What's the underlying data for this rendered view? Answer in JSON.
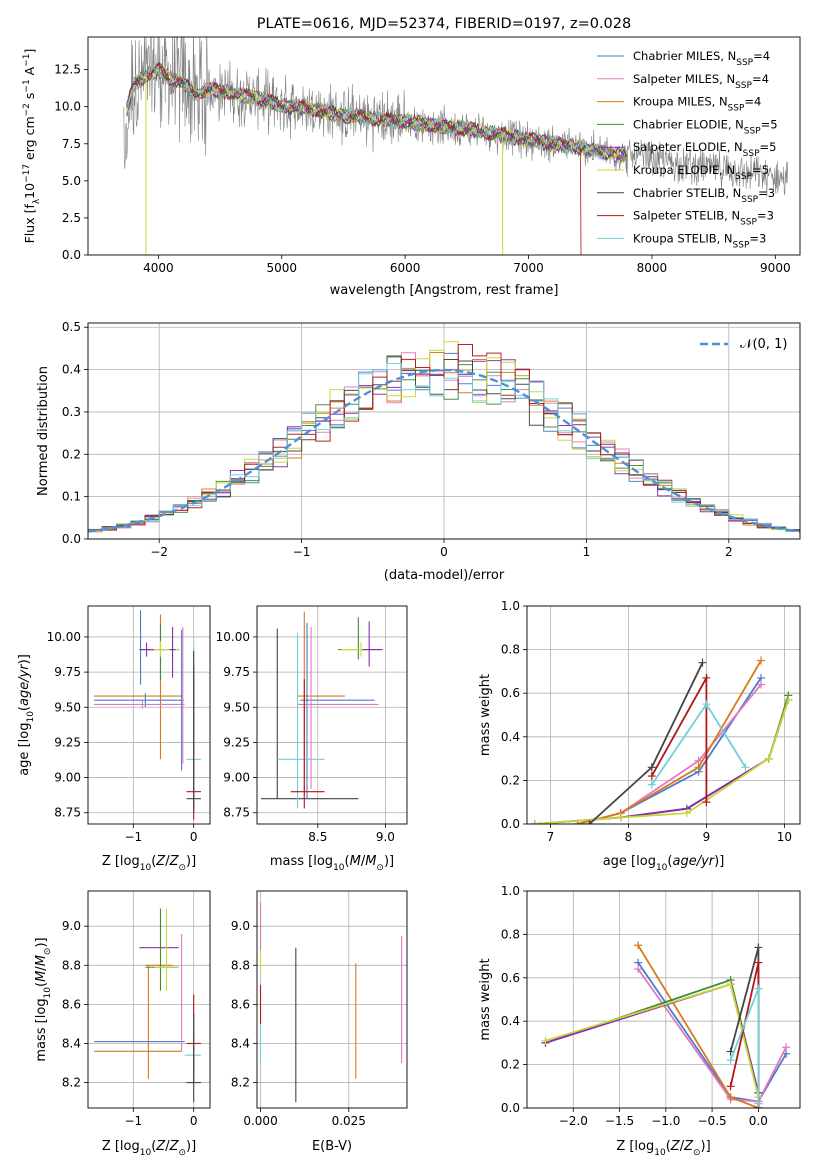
{
  "chart_data": [
    {
      "id": "spectrum",
      "type": "line",
      "title": "PLATE=0616, MJD=52374, FIBERID=0197, z=0.028",
      "xlabel": "wavelength [Angstrom, rest frame]",
      "ylabel": "Flux [f_λ 10^-17 erg cm^-2 s^-1 A^-1]",
      "xlim": [
        3430,
        9200
      ],
      "ylim": [
        0,
        14.7
      ],
      "xticks": [
        4000,
        5000,
        6000,
        7000,
        8000,
        9000
      ],
      "yticks": [
        0.0,
        2.5,
        5.0,
        7.5,
        10.0,
        12.5
      ],
      "grid": false,
      "legend_position": "top-right",
      "series": [
        {
          "name": "Chabrier MILES, N_SSP=4",
          "color": "#4a7bd0"
        },
        {
          "name": "Salpeter MILES, N_SSP=4",
          "color": "#e07ac0"
        },
        {
          "name": "Kroupa MILES, N_SSP=4",
          "color": "#d77a1b"
        },
        {
          "name": "Chabrier ELODIE, N_SSP=5",
          "color": "#3e8c3a"
        },
        {
          "name": "Salpeter ELODIE, N_SSP=5",
          "color": "#8a2bb0"
        },
        {
          "name": "Kroupa ELODIE, N_SSP=5",
          "color": "#c8d838"
        },
        {
          "name": "Chabrier STELIB, N_SSP=3",
          "color": "#444444"
        },
        {
          "name": "Salpeter STELIB, N_SSP=3",
          "color": "#b01818"
        },
        {
          "name": "Kroupa STELIB, N_SSP=3",
          "color": "#6fd0d8"
        }
      ],
      "model_continuum": {
        "x": [
          3700,
          3800,
          3900,
          4000,
          4100,
          4200,
          4300,
          4400,
          4600,
          4800,
          5000,
          5200,
          5500,
          6000,
          6500,
          7000,
          7500,
          7700
        ],
        "y": [
          8.5,
          11.5,
          12.1,
          12.5,
          11.9,
          11.6,
          10.8,
          11.2,
          10.9,
          10.6,
          10.1,
          9.9,
          9.4,
          9.0,
          8.5,
          7.8,
          7.1,
          6.8
        ]
      }
    },
    {
      "id": "residuals",
      "type": "line",
      "xlabel": "(data-model)/error",
      "ylabel": "Normed distribution",
      "xlim": [
        -2.5,
        2.5
      ],
      "ylim": [
        0,
        0.51
      ],
      "xticks": [
        -2,
        -1,
        0,
        1,
        2
      ],
      "yticks": [
        0.0,
        0.1,
        0.2,
        0.3,
        0.4,
        0.5
      ],
      "grid": true,
      "legend_position": "top-right",
      "legend_label": "N(0,1)",
      "reference_curve": {
        "name": "N(0,1)",
        "mean": 0,
        "sigma": 1,
        "color": "#5090d8"
      }
    },
    {
      "id": "age-vs-Z",
      "type": "scatter",
      "xlabel": "Z [log10(Z/Z⊙)]",
      "ylabel": "age  [log10(age/yr)]",
      "xlim": [
        -1.75,
        0.27
      ],
      "ylim": [
        8.67,
        10.22
      ],
      "xticks": [
        -1,
        0
      ],
      "yticks": [
        8.75,
        9.0,
        9.25,
        9.5,
        9.75,
        10.0
      ],
      "grid": true,
      "points": [
        {
          "x": -0.88,
          "y": 9.91,
          "xerr": [
            0.0,
            0.42
          ],
          "yerr": [
            0.25,
            0.28
          ],
          "color": "#4a7bd0"
        },
        {
          "x": -0.55,
          "y": 9.58,
          "xerr": [
            1.1,
            0.35
          ],
          "yerr": [
            0.45,
            0.58
          ],
          "color": "#d77a1b"
        },
        {
          "x": -0.8,
          "y": 9.55,
          "xerr": [
            0.85,
            0.6
          ],
          "yerr": [
            0.05,
            0.05
          ],
          "color": "#4a7bd0"
        },
        {
          "x": -0.85,
          "y": 9.52,
          "xerr": [
            0.8,
            0.7
          ],
          "yerr": [
            0.03,
            0.03
          ],
          "color": "#e07ac0"
        },
        {
          "x": -0.55,
          "y": 9.91,
          "xerr": [
            0.3,
            0.3
          ],
          "yerr": [
            0.22,
            0.18
          ],
          "color": "#3e8c3a"
        },
        {
          "x": -0.55,
          "y": 9.91,
          "xerr": [
            0.25,
            0.32
          ],
          "yerr": [
            0.05,
            0.06
          ],
          "color": "#c8d838"
        },
        {
          "x": -0.78,
          "y": 9.91,
          "xerr": [
            0.12,
            0.12
          ],
          "yerr": [
            0.05,
            0.05
          ],
          "color": "#8a2bb0"
        },
        {
          "x": -0.35,
          "y": 9.91,
          "xerr": [
            0.05,
            0.05
          ],
          "yerr": [
            0.2,
            0.16
          ],
          "color": "#8a2bb0"
        },
        {
          "x": -0.2,
          "y": 9.55,
          "xerr": [
            0.02,
            0.02
          ],
          "yerr": [
            0.5,
            0.5
          ],
          "color": "#4a7bd0"
        },
        {
          "x": -0.18,
          "y": 9.55,
          "xerr": [
            0.02,
            0.02
          ],
          "yerr": [
            0.45,
            0.52
          ],
          "color": "#e07ac0"
        },
        {
          "x": 0.0,
          "y": 9.13,
          "xerr": [
            0.12,
            0.12
          ],
          "yerr": [
            0.35,
            0.8
          ],
          "color": "#6fd0d8"
        },
        {
          "x": 0.0,
          "y": 8.9,
          "xerr": [
            0.12,
            0.12
          ],
          "yerr": [
            0.2,
            0.9
          ],
          "color": "#b01818"
        },
        {
          "x": 0.0,
          "y": 8.85,
          "xerr": [
            0.12,
            0.12
          ],
          "yerr": [
            0.1,
            1.05
          ],
          "color": "#444444"
        }
      ]
    },
    {
      "id": "age-vs-mass",
      "type": "scatter",
      "xlabel": "mass [log10(M/M⊙)]",
      "ylabel": "",
      "xlim": [
        8.05,
        9.16
      ],
      "ylim": [
        8.67,
        10.22
      ],
      "xticks": [
        8.5,
        9.0
      ],
      "yticks": [
        8.75,
        9.0,
        9.25,
        9.5,
        9.75,
        10.0
      ],
      "grid": true,
      "points": [
        {
          "x": 8.2,
          "y": 8.85,
          "xerr": [
            0.12,
            0.6
          ],
          "yerr": [
            0.0,
            1.21
          ],
          "color": "#444444"
        },
        {
          "x": 8.4,
          "y": 9.58,
          "xerr": [
            0.05,
            0.3
          ],
          "yerr": [
            0.7,
            0.6
          ],
          "color": "#d77a1b"
        },
        {
          "x": 8.42,
          "y": 9.55,
          "xerr": [
            0.05,
            0.5
          ],
          "yerr": [
            0.7,
            0.55
          ],
          "color": "#4a7bd0"
        },
        {
          "x": 8.45,
          "y": 9.52,
          "xerr": [
            0.1,
            0.5
          ],
          "yerr": [
            0.6,
            0.55
          ],
          "color": "#e07ac0"
        },
        {
          "x": 8.35,
          "y": 9.13,
          "xerr": [
            0.15,
            0.2
          ],
          "yerr": [
            0.35,
            0.9
          ],
          "color": "#6fd0d8"
        },
        {
          "x": 8.4,
          "y": 8.9,
          "xerr": [
            0.1,
            0.15
          ],
          "yerr": [
            0.12,
            0.8
          ],
          "color": "#b01818"
        },
        {
          "x": 8.8,
          "y": 9.91,
          "xerr": [
            0.15,
            0.15
          ],
          "yerr": [
            0.07,
            0.23
          ],
          "color": "#3e8c3a"
        },
        {
          "x": 8.82,
          "y": 9.91,
          "xerr": [
            0.15,
            0.15
          ],
          "yerr": [
            0.05,
            0.05
          ],
          "color": "#c8d838"
        },
        {
          "x": 8.88,
          "y": 9.91,
          "xerr": [
            0.05,
            0.1
          ],
          "yerr": [
            0.12,
            0.2
          ],
          "color": "#8a2bb0"
        }
      ]
    },
    {
      "id": "massweight-vs-age",
      "type": "line",
      "xlabel": "age  [log10(age/yr)]",
      "ylabel": "mass weight",
      "xlim": [
        6.7,
        10.2
      ],
      "ylim": [
        0,
        1.0
      ],
      "xticks": [
        7,
        8,
        9,
        10
      ],
      "yticks": [
        0.0,
        0.2,
        0.4,
        0.6,
        0.8,
        1.0
      ],
      "grid": true,
      "series": [
        {
          "name": "Chabrier MILES, N_SSP=4",
          "color": "#4a7bd0",
          "x": [
            7.35,
            7.9,
            8.9,
            9.7
          ],
          "y": [
            0.0,
            0.05,
            0.24,
            0.67
          ]
        },
        {
          "name": "Salpeter MILES, N_SSP=4",
          "color": "#e07ac0",
          "x": [
            7.35,
            7.9,
            8.9,
            9.7
          ],
          "y": [
            0.0,
            0.05,
            0.29,
            0.64
          ]
        },
        {
          "name": "Kroupa MILES, N_SSP=4",
          "color": "#d77a1b",
          "x": [
            7.35,
            7.9,
            8.9,
            9.7
          ],
          "y": [
            0.0,
            0.05,
            0.26,
            0.75
          ]
        },
        {
          "name": "Chabrier ELODIE, N_SSP=5",
          "color": "#3e8c3a",
          "x": [
            6.8,
            7.9,
            8.75,
            9.8,
            10.05
          ],
          "y": [
            0.0,
            0.03,
            0.07,
            0.3,
            0.59
          ]
        },
        {
          "name": "Salpeter ELODIE, N_SSP=5",
          "color": "#8a2bb0",
          "x": [
            6.8,
            7.9,
            8.75,
            9.8,
            10.05
          ],
          "y": [
            0.0,
            0.03,
            0.07,
            0.3,
            0.57
          ]
        },
        {
          "name": "Kroupa ELODIE, N_SSP=5",
          "color": "#c8d838",
          "x": [
            6.8,
            7.9,
            8.75,
            9.8,
            10.05
          ],
          "y": [
            0.0,
            0.03,
            0.05,
            0.3,
            0.57
          ]
        },
        {
          "name": "Chabrier STELIB, N_SSP=3",
          "color": "#444444",
          "x": [
            7.5,
            8.3,
            8.95
          ],
          "y": [
            0.0,
            0.26,
            0.74
          ]
        },
        {
          "name": "Salpeter STELIB, N_SSP=3",
          "color": "#b01818",
          "x": [
            8.3,
            9.0,
            9.0
          ],
          "y": [
            0.22,
            0.67,
            0.1
          ]
        },
        {
          "name": "Kroupa STELIB, N_SSP=3",
          "color": "#6fd0d8",
          "x": [
            8.3,
            9.0,
            9.5
          ],
          "y": [
            0.18,
            0.55,
            0.26
          ]
        }
      ]
    },
    {
      "id": "mass-vs-Z",
      "type": "scatter",
      "xlabel": "Z [log10(Z/Z⊙)]",
      "ylabel": "mass [log10(M/M⊙)]",
      "xlim": [
        -1.75,
        0.27
      ],
      "ylim": [
        8.07,
        9.18
      ],
      "xticks": [
        -1,
        0
      ],
      "yticks": [
        8.2,
        8.4,
        8.6,
        8.8,
        9.0
      ],
      "grid": true,
      "points": [
        {
          "x": -0.55,
          "y": 8.41,
          "xerr": [
            1.1,
            0.4
          ],
          "yerr": [
            0.0,
            0.0
          ],
          "color": "#4a7bd0"
        },
        {
          "x": -0.55,
          "y": 8.36,
          "xerr": [
            1.1,
            0.35
          ],
          "yerr": [
            0.0,
            0.0
          ],
          "color": "#d77a1b"
        },
        {
          "x": -0.75,
          "y": 8.8,
          "xerr": [
            0.05,
            0.4
          ],
          "yerr": [
            0.58,
            0.0
          ],
          "color": "#d77a1b"
        },
        {
          "x": -0.55,
          "y": 8.89,
          "xerr": [
            0.35,
            0.3
          ],
          "yerr": [
            0.0,
            0.0
          ],
          "color": "#8a2bb0"
        },
        {
          "x": -0.55,
          "y": 8.79,
          "xerr": [
            0.25,
            0.3
          ],
          "yerr": [
            0.12,
            0.3
          ],
          "color": "#3e8c3a"
        },
        {
          "x": -0.45,
          "y": 8.79,
          "xerr": [
            0.2,
            0.2
          ],
          "yerr": [
            0.12,
            0.3
          ],
          "color": "#c8d838"
        },
        {
          "x": -0.2,
          "y": 8.56,
          "xerr": [
            0.0,
            0.0
          ],
          "yerr": [
            0.2,
            0.4
          ],
          "color": "#e07ac0"
        },
        {
          "x": 0.0,
          "y": 8.34,
          "xerr": [
            0.15,
            0.12
          ],
          "yerr": [
            0.1,
            0.1
          ],
          "color": "#6fd0d8"
        },
        {
          "x": 0.0,
          "y": 8.4,
          "xerr": [
            0.12,
            0.12
          ],
          "yerr": [
            0.2,
            0.25
          ],
          "color": "#b01818"
        },
        {
          "x": 0.0,
          "y": 8.2,
          "xerr": [
            0.12,
            0.12
          ],
          "yerr": [
            0.1,
            0.35
          ],
          "color": "#444444"
        }
      ]
    },
    {
      "id": "mass-vs-ebv",
      "type": "scatter",
      "xlabel": "E(B-V)",
      "ylabel": "",
      "xlim": [
        -0.001,
        0.0415
      ],
      "ylim": [
        8.07,
        9.18
      ],
      "xticks": [
        0.0,
        0.025
      ],
      "yticks": [
        8.2,
        8.4,
        8.6,
        8.8,
        9.0
      ],
      "grid": true,
      "points": [
        {
          "x": 0.0,
          "y": 8.95,
          "xerr": [
            0,
            0
          ],
          "yerr": [
            0.18,
            0.17
          ],
          "color": "#c8d838"
        },
        {
          "x": 0.0,
          "y": 9.0,
          "xerr": [
            0,
            0
          ],
          "yerr": [
            0.12,
            0.12
          ],
          "color": "#e07ac0"
        },
        {
          "x": 0.0,
          "y": 8.6,
          "xerr": [
            0,
            0
          ],
          "yerr": [
            0.1,
            0.1
          ],
          "color": "#b01818"
        },
        {
          "x": 0.0,
          "y": 8.4,
          "xerr": [
            0,
            0
          ],
          "yerr": [
            0.1,
            0.1
          ],
          "color": "#6fd0d8"
        },
        {
          "x": 0.01,
          "y": 8.55,
          "xerr": [
            0,
            0
          ],
          "yerr": [
            0.45,
            0.34
          ],
          "color": "#444444"
        },
        {
          "x": 0.027,
          "y": 8.52,
          "xerr": [
            0,
            0
          ],
          "yerr": [
            0.3,
            0.29
          ],
          "color": "#d77a1b"
        },
        {
          "x": 0.04,
          "y": 8.62,
          "xerr": [
            0,
            0
          ],
          "yerr": [
            0.32,
            0.33
          ],
          "color": "#e07ac0"
        }
      ]
    },
    {
      "id": "massweight-vs-Z",
      "type": "line",
      "xlabel": "Z [log10(Z/Z⊙)]",
      "ylabel": "mass weight",
      "xlim": [
        -2.5,
        0.45
      ],
      "ylim": [
        0,
        1.0
      ],
      "xticks": [
        -2.0,
        -1.5,
        -1.0,
        -0.5,
        0.0
      ],
      "yticks": [
        0.0,
        0.2,
        0.4,
        0.6,
        0.8,
        1.0
      ],
      "grid": true,
      "series": [
        {
          "name": "Chabrier MILES, N_SSP=4",
          "color": "#4a7bd0",
          "x": [
            -1.3,
            -0.3,
            0.0,
            0.3
          ],
          "y": [
            0.67,
            0.05,
            0.03,
            0.25
          ]
        },
        {
          "name": "Salpeter MILES, N_SSP=4",
          "color": "#e07ac0",
          "x": [
            -1.3,
            -0.3,
            0.0,
            0.3
          ],
          "y": [
            0.64,
            0.04,
            0.03,
            0.28
          ]
        },
        {
          "name": "Kroupa MILES, N_SSP=4",
          "color": "#d77a1b",
          "x": [
            -1.3,
            -0.3,
            0.0
          ],
          "y": [
            0.75,
            0.05,
            0.0
          ]
        },
        {
          "name": "Chabrier ELODIE, N_SSP=5",
          "color": "#3e8c3a",
          "x": [
            -2.3,
            -0.3,
            0.0
          ],
          "y": [
            0.3,
            0.59,
            0.07
          ]
        },
        {
          "name": "Salpeter ELODIE, N_SSP=5",
          "color": "#8a2bb0",
          "x": [
            -2.3,
            -0.3,
            0.0
          ],
          "y": [
            0.3,
            0.57,
            0.07
          ]
        },
        {
          "name": "Kroupa ELODIE, N_SSP=5",
          "color": "#c8d838",
          "x": [
            -2.3,
            -0.3,
            0.0
          ],
          "y": [
            0.31,
            0.57,
            0.05
          ]
        },
        {
          "name": "Chabrier STELIB, N_SSP=3",
          "color": "#444444",
          "x": [
            -0.3,
            0.0,
            0.0
          ],
          "y": [
            0.26,
            0.74,
            0.0
          ]
        },
        {
          "name": "Salpeter STELIB, N_SSP=3",
          "color": "#b01818",
          "x": [
            -0.3,
            0.0,
            0.0
          ],
          "y": [
            0.1,
            0.67,
            0.0
          ]
        },
        {
          "name": "Kroupa STELIB, N_SSP=3",
          "color": "#6fd0d8",
          "x": [
            -0.3,
            0.0,
            0.0
          ],
          "y": [
            0.22,
            0.55,
            0.02
          ]
        }
      ]
    }
  ]
}
